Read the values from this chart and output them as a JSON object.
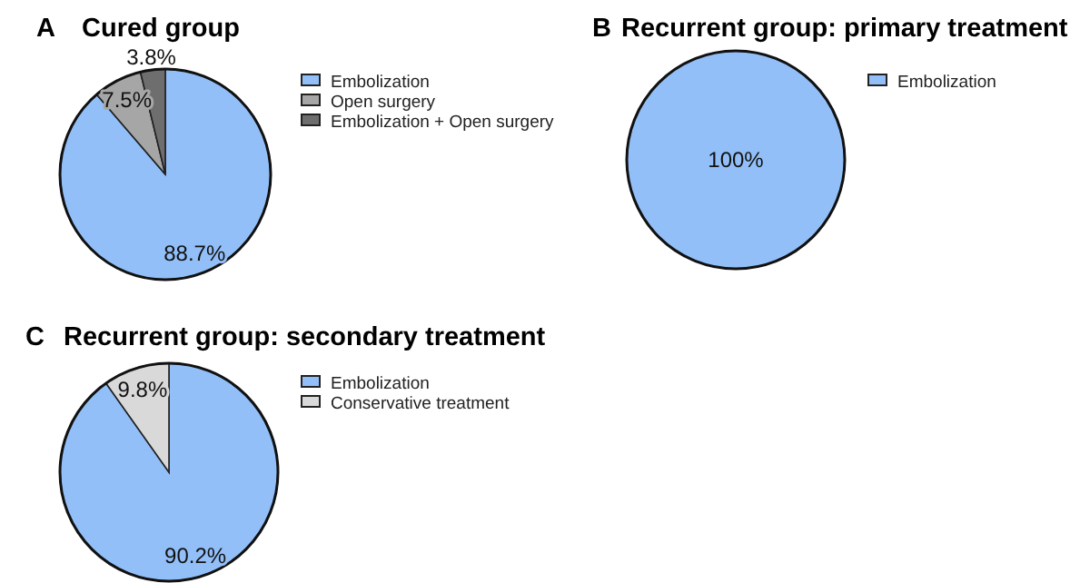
{
  "chart_data": [
    {
      "type": "pie",
      "title": "Cured group",
      "annotations": [
        "A"
      ],
      "categories": [
        "Embolization",
        "Open surgery",
        "Embolization + Open surgery"
      ],
      "values": [
        88.7,
        7.5,
        3.8
      ],
      "colors": [
        "#93bff8",
        "#a6a6a6",
        "#6e6e6e"
      ],
      "value_labels": [
        "88.7%",
        "7.5%",
        "3.8%"
      ],
      "legend": "right"
    },
    {
      "type": "pie",
      "title": "Recurrent group: primary treatment",
      "annotations": [
        "B"
      ],
      "categories": [
        "Embolization"
      ],
      "values": [
        100
      ],
      "colors": [
        "#93bff8"
      ],
      "value_labels": [
        "100%"
      ],
      "legend": "right"
    },
    {
      "type": "pie",
      "title": "Recurrent group: secondary treatment",
      "annotations": [
        "C"
      ],
      "categories": [
        "Embolization",
        "Conservative treatment"
      ],
      "values": [
        90.2,
        9.8
      ],
      "colors": [
        "#93bff8",
        "#d9d9d9"
      ],
      "value_labels": [
        "90.2%",
        "9.8%"
      ],
      "legend": "right"
    }
  ]
}
